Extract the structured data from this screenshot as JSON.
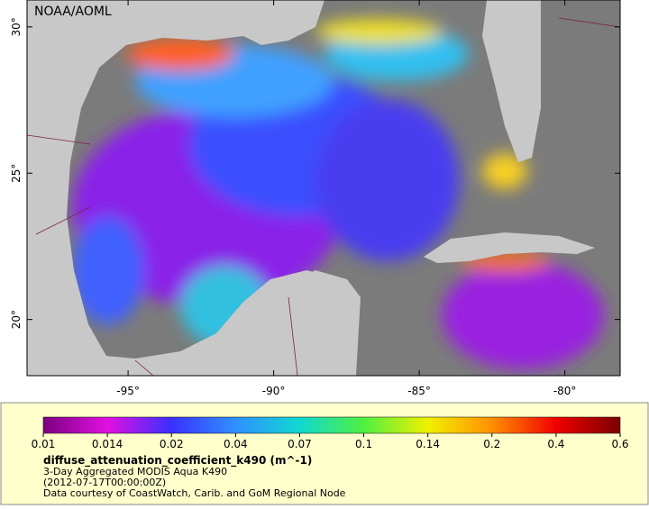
{
  "map": {
    "credit": "NOAA/AOML",
    "lon_range": [
      -98.47,
      -78.1
    ],
    "lat_range": [
      18.08,
      30.92
    ],
    "lon_ticks": [
      {
        "value": -95,
        "label": "-95°"
      },
      {
        "value": -90,
        "label": "-90°"
      },
      {
        "value": -85,
        "label": "-85°"
      },
      {
        "value": -80,
        "label": "-80°"
      }
    ],
    "lat_ticks": [
      {
        "value": 30,
        "label": "30°"
      },
      {
        "value": 25,
        "label": "25°"
      },
      {
        "value": 20,
        "label": "20°"
      }
    ]
  },
  "legend": {
    "colorbar_ticks": [
      0.01,
      0.014,
      0.02,
      0.04,
      0.07,
      0.1,
      0.14,
      0.2,
      0.4,
      0.6
    ],
    "colorbar_colors": [
      "#7a0080",
      "#e010e0",
      "#3a30ff",
      "#3090ff",
      "#10d8d0",
      "#50f040",
      "#f0f000",
      "#ff9000",
      "#f00000",
      "#7a0000"
    ],
    "variable": "diffuse_attenuation_coefficient_k490 (m^-1)",
    "lines": [
      "3-Day Aggregated MODIS Aqua K490",
      "(2012-07-17T00:00:00Z)",
      "Data courtesy of CoastWatch, Carib. and GoM Regional Node"
    ]
  }
}
